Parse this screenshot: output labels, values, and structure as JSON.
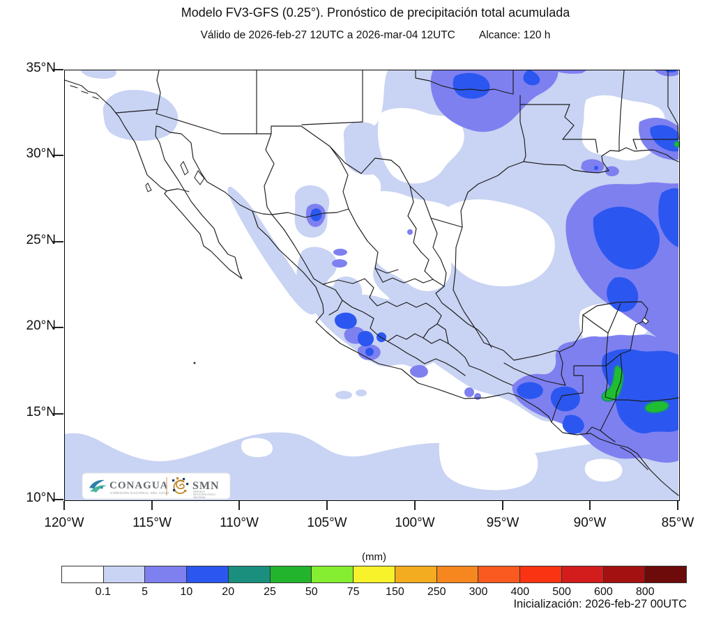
{
  "header": {
    "title": "Modelo FV3-GFS (0.25°). Pronóstico de precipitación total acumulada",
    "valid_text": "Válido de 2026-feb-27 12UTC a 2026-mar-04 12UTC",
    "range_text": "Alcance: 120 h"
  },
  "map": {
    "lat_ticks": [
      "35°N",
      "30°N",
      "25°N",
      "20°N",
      "15°N",
      "10°N"
    ],
    "lon_ticks": [
      "120°W",
      "115°W",
      "110°W",
      "105°W",
      "100°W",
      "95°W",
      "90°W",
      "85°W"
    ],
    "precip_palette": {
      "trace": "#c9d3f3",
      "light": "#7e80f0",
      "mod": "#2b57f0",
      "teal": "#1a8f7e",
      "green": "#1fbe31"
    },
    "boundary_color": "#1b1b1b"
  },
  "colorbar": {
    "unit_label": "(mm)",
    "tick_labels": [
      "0.1",
      "5",
      "10",
      "20",
      "25",
      "50",
      "75",
      "150",
      "250",
      "300",
      "400",
      "500",
      "600",
      "800"
    ],
    "cell_colors": [
      "#ffffff",
      "#c9d3f3",
      "#7e80f0",
      "#2b57f0",
      "#1a8f7e",
      "#22b42c",
      "#85ee30",
      "#f8f22b",
      "#f3ab1f",
      "#f6871e",
      "#fa5a20",
      "#fa3312",
      "#d31c1c",
      "#a31111",
      "#6d0a0a"
    ]
  },
  "branding": {
    "conagua_name": "CONAGUA",
    "conagua_caption": "COMISIÓN NACIONAL DEL AGUA",
    "divider": "|",
    "smn_name": "SMN",
    "smn_caption_lines": [
      "SERVICIO",
      "METEOROLÓGICO",
      "NACIONAL"
    ]
  },
  "footer": {
    "init_text": "Inicialización: 2026-feb-27 00UTC"
  }
}
